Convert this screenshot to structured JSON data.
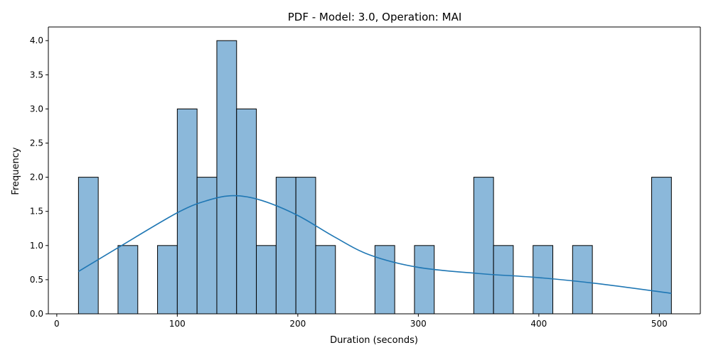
{
  "chart_data": {
    "type": "bar",
    "title": "PDF - Model: 3.0, Operation: MAI",
    "xlabel": "Duration (seconds)",
    "ylabel": "Frequency",
    "xlim": [
      -7,
      534
    ],
    "ylim": [
      0,
      4.2
    ],
    "x_ticks": [
      0,
      100,
      200,
      300,
      400,
      500
    ],
    "x_tick_labels": [
      "0",
      "100",
      "200",
      "300",
      "400",
      "500"
    ],
    "y_ticks": [
      0,
      0.5,
      1.0,
      1.5,
      2.0,
      2.5,
      3.0,
      3.5,
      4.0
    ],
    "y_tick_labels": [
      "0.0",
      "0.5",
      "1.0",
      "1.5",
      "2.0",
      "2.5",
      "3.0",
      "3.5",
      "4.0"
    ],
    "bin_start": 18,
    "bin_width": 16.4,
    "bins": [
      {
        "start": 18.0,
        "end": 34.4,
        "count": 2
      },
      {
        "start": 50.8,
        "end": 67.2,
        "count": 1
      },
      {
        "start": 83.6,
        "end": 100.0,
        "count": 1
      },
      {
        "start": 100.0,
        "end": 116.4,
        "count": 3
      },
      {
        "start": 116.4,
        "end": 132.8,
        "count": 2
      },
      {
        "start": 132.8,
        "end": 149.2,
        "count": 4
      },
      {
        "start": 149.2,
        "end": 165.6,
        "count": 3
      },
      {
        "start": 165.6,
        "end": 182.0,
        "count": 1
      },
      {
        "start": 182.0,
        "end": 198.4,
        "count": 2
      },
      {
        "start": 198.4,
        "end": 214.8,
        "count": 2
      },
      {
        "start": 214.8,
        "end": 231.2,
        "count": 1
      },
      {
        "start": 264.0,
        "end": 280.4,
        "count": 1
      },
      {
        "start": 296.8,
        "end": 313.2,
        "count": 1
      },
      {
        "start": 346.0,
        "end": 362.4,
        "count": 2
      },
      {
        "start": 362.4,
        "end": 378.8,
        "count": 1
      },
      {
        "start": 395.2,
        "end": 411.6,
        "count": 1
      },
      {
        "start": 428.0,
        "end": 444.4,
        "count": 1
      },
      {
        "start": 493.6,
        "end": 510.0,
        "count": 2
      }
    ],
    "kde": {
      "x": [
        18,
        50,
        100,
        125,
        147,
        170,
        200,
        230,
        260,
        300,
        350,
        400,
        450,
        510
      ],
      "y": [
        0.62,
        0.96,
        1.48,
        1.66,
        1.73,
        1.66,
        1.44,
        1.13,
        0.86,
        0.68,
        0.59,
        0.53,
        0.44,
        0.3
      ]
    },
    "colors": {
      "bar_fill": "#8bb8da",
      "bar_edge": "#000000",
      "kde_line": "#1f77b4"
    },
    "grid": false,
    "legend": "none"
  }
}
